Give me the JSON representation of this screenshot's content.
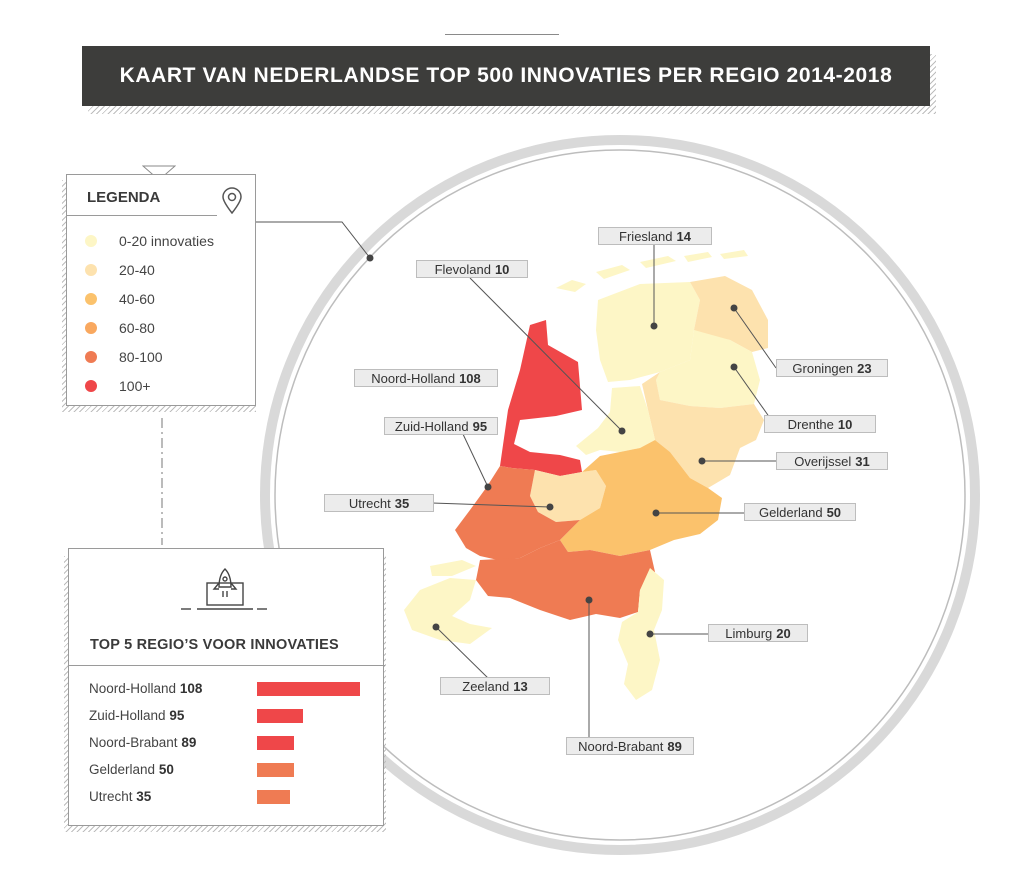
{
  "title": "KAART VAN NEDERLANDSE TOP 500 INNOVATIES PER REGIO 2014-2018",
  "colors": {
    "0-20": "#fdf6c6",
    "20-40": "#fde2ae",
    "40-60": "#fbc26c",
    "60-80": "#f9a85f",
    "80-100": "#ef7b53",
    "100+": "#ef4749"
  },
  "legend": {
    "title": "LEGENDA",
    "items": [
      {
        "label": "0-20 innovaties",
        "color": "#fdf6c6"
      },
      {
        "label": "20-40",
        "color": "#fde2ae"
      },
      {
        "label": "40-60",
        "color": "#fbc26c"
      },
      {
        "label": "60-80",
        "color": "#f9a85f"
      },
      {
        "label": "80-100",
        "color": "#ef7b53"
      },
      {
        "label": "100+",
        "color": "#ef4749"
      }
    ]
  },
  "top5": {
    "title": "TOP 5 REGIO’S VOOR INNOVATIES",
    "icon": "rocket-laptop-icon",
    "rows": [
      {
        "name": "Noord-Holland",
        "value": 108,
        "color": "#ef4749"
      },
      {
        "name": "Zuid-Holland",
        "value": 95,
        "color": "#ef4749"
      },
      {
        "name": "Noord-Brabant",
        "value": 89,
        "color": "#ef4749"
      },
      {
        "name": "Gelderland",
        "value": 50,
        "color": "#ef7b53"
      },
      {
        "name": "Utrecht",
        "value": 35,
        "color": "#ef7b53"
      }
    ]
  },
  "regions": {
    "friesland": {
      "name": "Friesland",
      "value": "14"
    },
    "flevoland": {
      "name": "Flevoland",
      "value": "10"
    },
    "groningen": {
      "name": "Groningen",
      "value": "23"
    },
    "noord_holland": {
      "name": "Noord-Holland",
      "value": "108"
    },
    "zuid_holland": {
      "name": "Zuid-Holland",
      "value": "95"
    },
    "drenthe": {
      "name": "Drenthe",
      "value": "10"
    },
    "overijssel": {
      "name": "Overijssel",
      "value": "31"
    },
    "utrecht": {
      "name": "Utrecht",
      "value": "35"
    },
    "gelderland": {
      "name": "Gelderland",
      "value": "50"
    },
    "limburg": {
      "name": "Limburg",
      "value": "20"
    },
    "zeeland": {
      "name": "Zeeland",
      "value": "13"
    },
    "noord_brabant": {
      "name": "Noord-Brabant",
      "value": "89"
    }
  }
}
